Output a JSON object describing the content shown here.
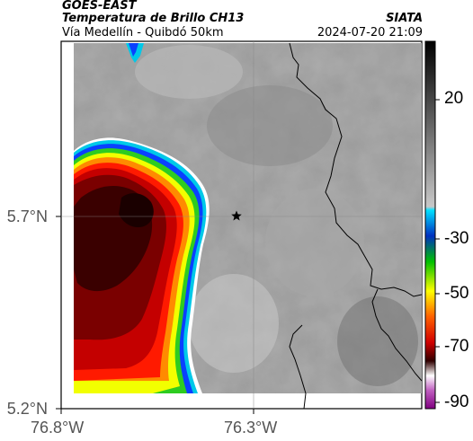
{
  "header": {
    "satellite": "GOES-EAST",
    "product": "Temperatura de Brillo CH13",
    "route": "Vía Medellín - Quibdó 50km",
    "source": "SIATA",
    "datetime": "2024-07-20 21:09"
  },
  "map": {
    "lat_ticks": [
      "5.7°N",
      "5.2°N"
    ],
    "lon_ticks": [
      "76.8°W",
      "76.3°W"
    ],
    "marker": "star",
    "cold_cloud_colors": [
      "#3a0000",
      "#7a0000",
      "#c40000",
      "#ff1a00",
      "#ff8a00",
      "#f2ff00",
      "#2ecc20",
      "#0a40ff",
      "#00c8e8"
    ]
  },
  "colorbar": {
    "ticks": [
      "20",
      "-30",
      "-50",
      "-70",
      "-90"
    ]
  },
  "icons": {
    "location_marker": "star-icon"
  }
}
